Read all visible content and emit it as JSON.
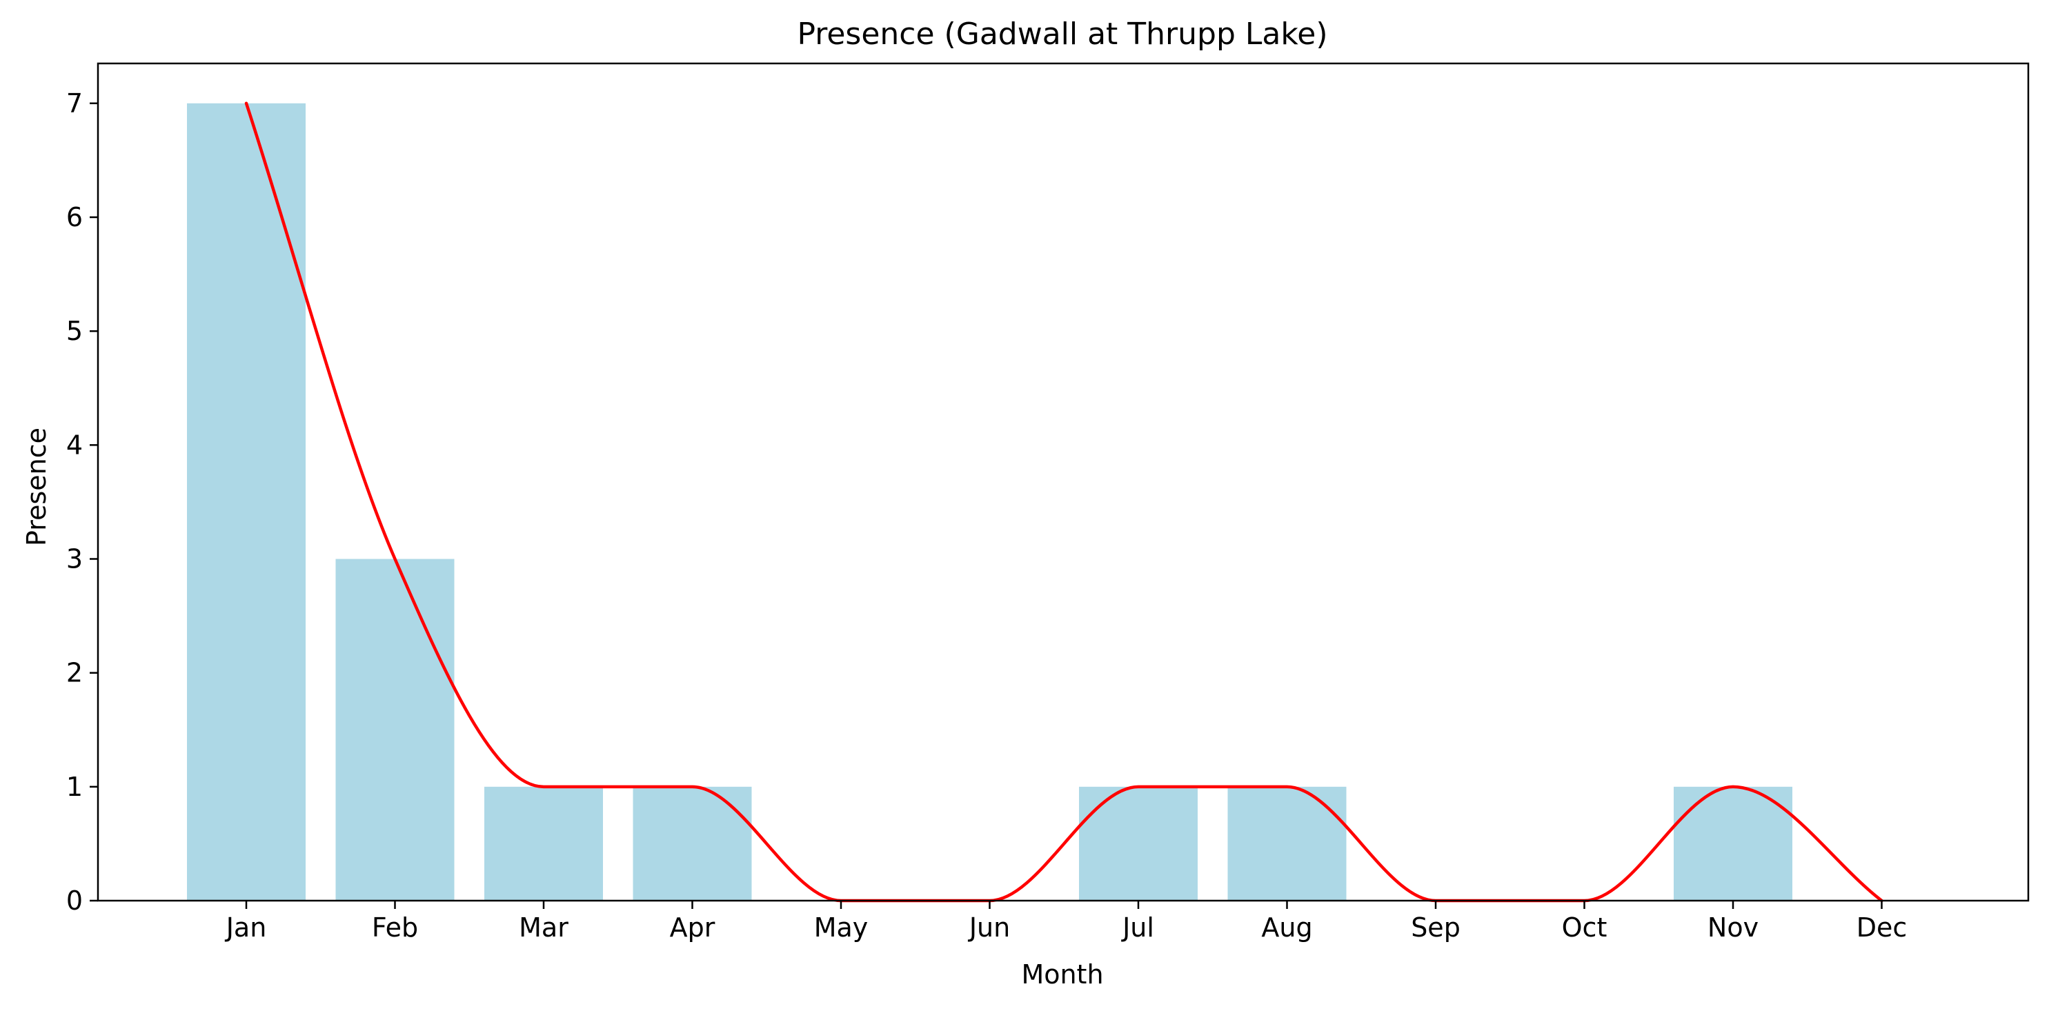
{
  "chart_data": {
    "type": "bar",
    "title": "Presence (Gadwall at Thrupp Lake)",
    "xlabel": "Month",
    "ylabel": "Presence",
    "categories": [
      "Jan",
      "Feb",
      "Mar",
      "Apr",
      "May",
      "Jun",
      "Jul",
      "Aug",
      "Sep",
      "Oct",
      "Nov",
      "Dec"
    ],
    "values": [
      7,
      3,
      1,
      1,
      0,
      0,
      1,
      1,
      0,
      0,
      1,
      0
    ],
    "ylim": [
      0,
      7.35
    ],
    "yticks": [
      0,
      1,
      2,
      3,
      4,
      5,
      6,
      7
    ],
    "grid": false,
    "bar_color": "#add8e6",
    "line_color": "#ff0000",
    "overlay": "smoothed line"
  }
}
